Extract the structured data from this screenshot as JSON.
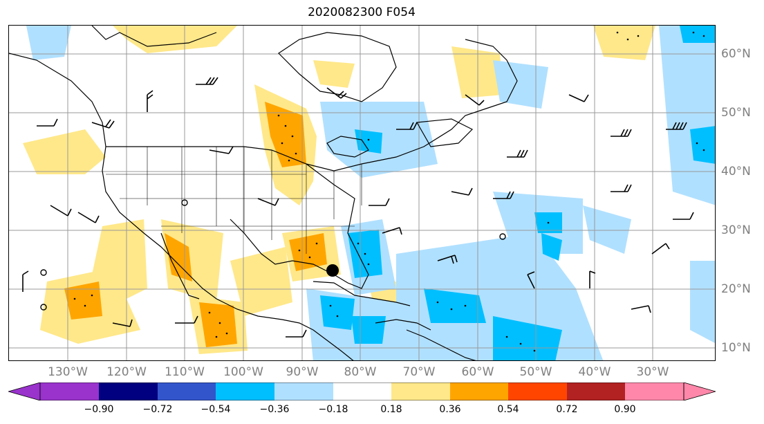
{
  "title": "2020082300 F054",
  "lon_labels": [
    "130°W",
    "120°W",
    "110°W",
    "100°W",
    "90°W",
    "80°W",
    "70°W",
    "60°W",
    "50°W",
    "40°W",
    "30°W"
  ],
  "lat_labels": [
    "60°N",
    "50°N",
    "40°N",
    "30°N",
    "20°N",
    "10°N"
  ],
  "colorbar": {
    "tick_labels": [
      "−0.90",
      "−0.72",
      "−0.54",
      "−0.36",
      "−0.18",
      "0.18",
      "0.36",
      "0.54",
      "0.72",
      "0.90"
    ],
    "colors": [
      "#9933cc",
      "#000080",
      "#3355cc",
      "#00bfff",
      "#b0e0ff",
      "#ffffff",
      "#ffe88a",
      "#ffa500",
      "#ff4500",
      "#b22222",
      "#ff88aa"
    ]
  },
  "legend_colors": {
    "positive_light": "#ffe88a",
    "positive_mid": "#ffa500",
    "negative_light": "#b0e0ff",
    "negative_mid": "#00bfff"
  },
  "icons": [
    "storm-center-marker-icon"
  ]
}
